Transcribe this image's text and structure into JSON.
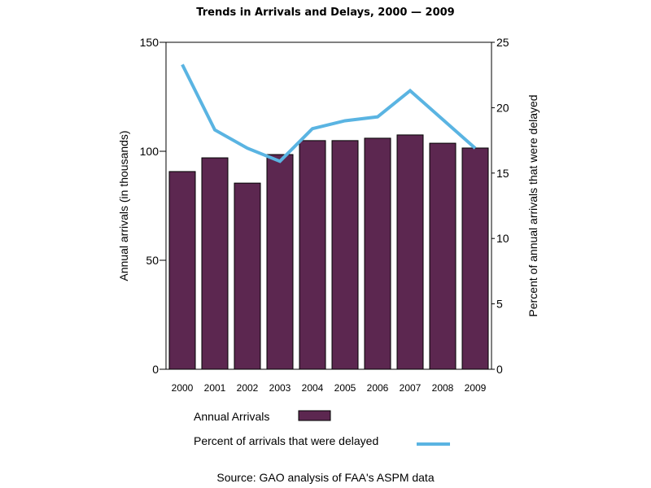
{
  "chart_data": {
    "type": "bar",
    "title": "Trends in Arrivals and Delays, 2000 — 2009",
    "categories": [
      "2000",
      "2001",
      "2002",
      "2003",
      "2004",
      "2005",
      "2006",
      "2007",
      "2008",
      "2009"
    ],
    "series": [
      {
        "name": "Annual Arrivals",
        "type": "bar",
        "axis": "left",
        "color": "#5c2750",
        "values": [
          90.7,
          97.0,
          85.4,
          98.5,
          104.9,
          104.9,
          106.0,
          107.5,
          103.7,
          101.5
        ]
      },
      {
        "name": "Percent of arrivals that were delayed",
        "type": "line",
        "axis": "right",
        "color": "#5ab4e2",
        "values": [
          23.3,
          18.3,
          16.9,
          15.9,
          18.4,
          19.0,
          19.3,
          21.3,
          19.1,
          16.9
        ]
      }
    ],
    "ylabel": "Annual arrivals (in thousands)",
    "ylim": [
      0,
      150
    ],
    "yticks": [
      "0",
      "50",
      "100",
      "150"
    ],
    "y2label": "Percent of annual arrivals that were delayed",
    "y2lim": [
      0,
      25
    ],
    "y2ticks": [
      "0",
      "5",
      "10",
      "15",
      "20",
      "25"
    ],
    "xlabel": "",
    "grid": false,
    "legend_position": "bottom",
    "legend": [
      {
        "label": "Annual Arrivals",
        "kind": "bar",
        "color": "#5c2750"
      },
      {
        "label": "Percent of arrivals that were delayed",
        "kind": "line",
        "color": "#5ab4e2"
      }
    ],
    "source": "Source: GAO analysis of FAA's ASPM data"
  }
}
